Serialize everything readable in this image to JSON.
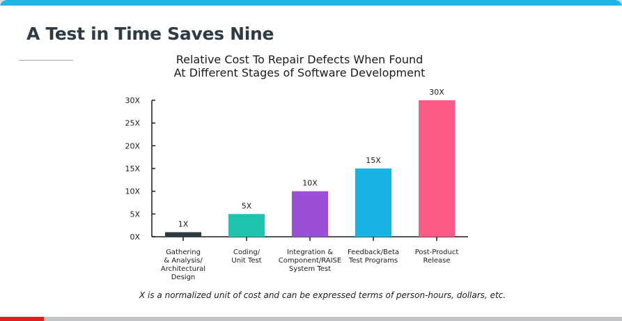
{
  "slide": {
    "title": "A Test in Time Saves Nine"
  },
  "chart_data": {
    "type": "bar",
    "title_lines": [
      "Relative Cost To Repair Defects When Found",
      "At Different Stages of Software Development"
    ],
    "categories": [
      "Gathering\n& Analysis/\nArchitectural\nDesign",
      "Coding/\nUnit Test",
      "Integration &\nComponent/RAISE\nSystem Test",
      "Feedback/Beta\nTest Programs",
      "Post-Product\nRelease"
    ],
    "values": [
      1,
      5,
      10,
      15,
      30
    ],
    "data_labels": [
      "1X",
      "5X",
      "10X",
      "15X",
      "30X"
    ],
    "colors": [
      "#2b3a42",
      "#1ec4ad",
      "#9a4fd6",
      "#18b2e6",
      "#fb5a84"
    ],
    "yticks": [
      "0X",
      "5X",
      "10X",
      "15X",
      "20X",
      "25X",
      "30X"
    ],
    "ylim": [
      0,
      30
    ],
    "grid": false
  },
  "footnote": "X is a normalized unit of cost and can be expressed terms of person-hours, dollars, etc.",
  "video": {
    "progress": 0.07
  }
}
